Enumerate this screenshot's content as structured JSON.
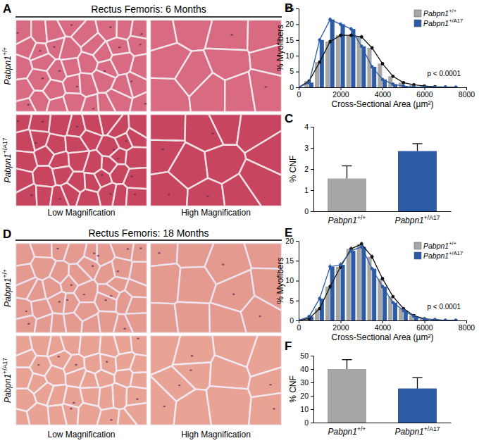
{
  "chart_data": [
    {
      "type": "bar",
      "panel": "B",
      "x": [
        0,
        500,
        1000,
        1500,
        2000,
        2500,
        3000,
        3500,
        4000,
        4500,
        5000,
        5500,
        6000,
        6500,
        7000,
        7500
      ],
      "xlim": [
        0,
        8000
      ],
      "xticks": [
        0,
        2000,
        4000,
        6000,
        8000
      ],
      "ylim": [
        0,
        25
      ],
      "yticks": [
        0,
        5,
        10,
        15,
        20,
        25
      ],
      "xlabel": "Cross-Sectional Area (µm²)",
      "ylabel": "% Myofibers",
      "legend": "upper right",
      "annotation": "p < 0.0001",
      "series": [
        {
          "name": "Pabpn1+/+",
          "color": "#a6a6a6",
          "marker": "circle",
          "values": [
            0,
            2,
            8,
            14.5,
            16.5,
            16.5,
            16,
            12.5,
            7.5,
            3.5,
            1.5,
            0.8,
            0.4,
            0.2,
            0.1,
            0
          ],
          "errors": [
            0,
            0.3,
            0.5,
            0.6,
            0.6,
            0.6,
            0.6,
            0.5,
            0.5,
            0.4,
            0.3,
            0.2,
            0.1,
            0.1,
            0.1,
            0
          ]
        },
        {
          "name": "Pabpn1+/A17",
          "color": "#2d5ba6",
          "marker": "circle",
          "values": [
            0,
            1.5,
            15,
            21.5,
            20,
            18.5,
            13,
            6.5,
            2.5,
            1,
            0.4,
            0.1,
            0,
            0,
            0,
            0
          ],
          "errors": [
            0,
            0.2,
            0.6,
            0.7,
            0.6,
            0.6,
            0.5,
            0.5,
            0.4,
            0.3,
            0.2,
            0.1,
            0,
            0,
            0,
            0
          ]
        }
      ]
    },
    {
      "type": "bar",
      "panel": "C",
      "categories": [
        "Pabpn1+/+",
        "Pabpn1+/A17"
      ],
      "values": [
        1.55,
        2.85
      ],
      "errors": [
        0.6,
        0.35
      ],
      "colors": [
        "#a6a6a6",
        "#2d5ba6"
      ],
      "ylim": [
        0,
        4
      ],
      "yticks": [
        0,
        1,
        2,
        3,
        4
      ],
      "ylabel": "% CNF"
    },
    {
      "type": "bar",
      "panel": "E",
      "x": [
        0,
        500,
        1000,
        1500,
        2000,
        2500,
        3000,
        3500,
        4000,
        4500,
        5000,
        5500,
        6000,
        6500,
        7000,
        7500
      ],
      "xlim": [
        0,
        8000
      ],
      "xticks": [
        0,
        2000,
        4000,
        6000,
        8000
      ],
      "ylim": [
        0,
        20
      ],
      "yticks": [
        0,
        5,
        10,
        15,
        20
      ],
      "xlabel": "Cross-Sectional Area (µm²)",
      "ylabel": "% Myofibers",
      "legend": "upper right",
      "annotation": "p < 0.0001",
      "series": [
        {
          "name": "Pabpn1+/+",
          "color": "#a6a6a6",
          "marker": "circle",
          "values": [
            0,
            0.5,
            3,
            8.5,
            13.5,
            18,
            19.2,
            16,
            10.5,
            6,
            3,
            1.2,
            0.4,
            0.2,
            0,
            0
          ],
          "errors": [
            0,
            0.2,
            0.4,
            0.5,
            0.6,
            0.6,
            0.6,
            0.6,
            0.5,
            0.4,
            0.3,
            0.2,
            0.1,
            0.1,
            0,
            0
          ]
        },
        {
          "name": "Pabpn1+/A17",
          "color": "#2d5ba6",
          "marker": "circle",
          "values": [
            0,
            1,
            5.5,
            13.5,
            14,
            17.5,
            18.5,
            13,
            8.5,
            4.5,
            2.5,
            1,
            0.3,
            0.2,
            0,
            0
          ],
          "errors": [
            0,
            0.2,
            0.5,
            0.7,
            0.6,
            0.6,
            0.6,
            0.5,
            0.5,
            0.4,
            0.3,
            0.2,
            0.1,
            0.1,
            0,
            0
          ]
        }
      ]
    },
    {
      "type": "bar",
      "panel": "F",
      "categories": [
        "Pabpn1+/+",
        "Pabpn1+/A17"
      ],
      "values": [
        40,
        25.5
      ],
      "errors": [
        7,
        8
      ],
      "colors": [
        "#a6a6a6",
        "#2d5ba6"
      ],
      "ylim": [
        0,
        50
      ],
      "yticks": [
        0,
        10,
        20,
        30,
        40,
        50
      ],
      "ylabel": "% CNF"
    }
  ],
  "image_panels": [
    {
      "panel": "A",
      "title": "Rectus Femoris: 6 Months",
      "rows": [
        "Pabpn1+/+",
        "Pabpn1+/A17"
      ],
      "columns": [
        "Low Magnification",
        "High Magnification"
      ]
    },
    {
      "panel": "D",
      "title": "Rectus Femoris: 18 Months",
      "rows": [
        "Pabpn1+/+",
        "Pabpn1+/A17"
      ],
      "columns": [
        "Low Magnification",
        "High Magnification"
      ]
    }
  ]
}
